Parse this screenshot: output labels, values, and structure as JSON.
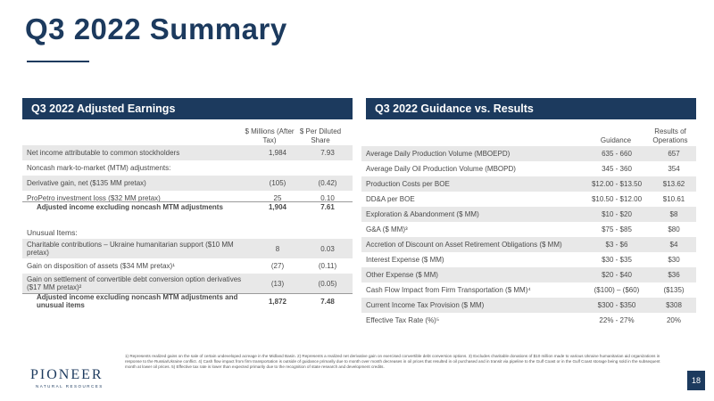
{
  "title": "Q3 2022 Summary",
  "left": {
    "heading": "Q3 2022 Adjusted Earnings",
    "col1": "$ Millions (After Tax)",
    "col2": "$ Per Diluted Share",
    "rows": [
      {
        "label": "Net income attributable to common stockholders",
        "v1": "1,984",
        "v2": "7.93"
      },
      {
        "label": "Noncash mark-to-market (MTM) adjustments:",
        "v1": "",
        "v2": ""
      },
      {
        "label": "Derivative gain, net ($135 MM pretax)",
        "v1": "(105)",
        "v2": "(0.42)"
      },
      {
        "label": "ProPetro investment loss ($32 MM pretax)",
        "v1": "25",
        "v2": "0.10"
      },
      {
        "label": "Adjusted income excluding noncash MTM adjustments",
        "v1": "1,904",
        "v2": "7.61"
      }
    ],
    "unusual_label": "Unusual Items:",
    "rows2": [
      {
        "label": "Charitable contributions – Ukraine humanitarian support ($10 MM pretax)",
        "v1": "8",
        "v2": "0.03"
      },
      {
        "label": "Gain on disposition of assets ($34 MM pretax)¹",
        "v1": "(27)",
        "v2": "(0.11)"
      },
      {
        "label": "Gain on settlement of convertible debt conversion option derivatives ($17 MM pretax)²",
        "v1": "(13)",
        "v2": "(0.05)"
      },
      {
        "label": "Adjusted income excluding noncash MTM adjustments and unusual items",
        "v1": "1,872",
        "v2": "7.48"
      }
    ]
  },
  "right": {
    "heading": "Q3 2022 Guidance vs. Results",
    "col1": "Guidance",
    "col2": "Results of Operations",
    "rows": [
      {
        "label": "Average Daily Production Volume (MBOEPD)",
        "v1": "635 - 660",
        "v2": "657"
      },
      {
        "label": "Average Daily Oil Production Volume (MBOPD)",
        "v1": "345 - 360",
        "v2": "354"
      },
      {
        "label": "Production Costs per BOE",
        "v1": "$12.00 - $13.50",
        "v2": "$13.62"
      },
      {
        "label": "DD&A per BOE",
        "v1": "$10.50 - $12.00",
        "v2": "$10.61"
      },
      {
        "label": "Exploration & Abandonment ($ MM)",
        "v1": "$10 - $20",
        "v2": "$8"
      },
      {
        "label": "G&A ($ MM)³",
        "v1": "$75 - $85",
        "v2": "$80"
      },
      {
        "label": "Accretion of Discount on Asset Retirement Obligations ($ MM)",
        "v1": "$3 - $6",
        "v2": "$4"
      },
      {
        "label": "Interest Expense ($ MM)",
        "v1": "$30 - $35",
        "v2": "$30"
      },
      {
        "label": "Other Expense ($ MM)",
        "v1": "$20 - $40",
        "v2": "$36"
      },
      {
        "label": "Cash Flow Impact from Firm Transportation ($ MM)⁴",
        "v1": "($100) – ($60)",
        "v2": "($135)"
      },
      {
        "label": "Current Income Tax Provision ($ MM)",
        "v1": "$300 - $350",
        "v2": "$308"
      },
      {
        "label": "Effective Tax Rate (%)⁵",
        "v1": "22% - 27%",
        "v2": "20%"
      }
    ]
  },
  "footnote": "1) Represents realized gains on the sale of certain undeveloped acreage in the Midland Basin. 2) Represents a realized net derivative gain on exercised convertible debt conversion options. 3) Excludes charitable donations of $10 million made to various Ukraine humanitarian aid organizations in response to the Russia/Ukraine conflict. 4) Cash flow impact from firm transportation is outside of guidance primarily due to month over month decreases in oil prices that resulted in oil purchased and in transit via pipeline to the Gulf Coast or in the Gulf Coast storage being sold in the subsequent month at lower oil prices. 5) Effective tax rate is lower than expected primarily due to the recognition of state research and development credits.",
  "logo": "PIONEER",
  "logo_sub": "NATURAL RESOURCES",
  "page_number": "18",
  "colors": {
    "brand": "#1c3a5e",
    "shade": "#e8e8e8"
  }
}
